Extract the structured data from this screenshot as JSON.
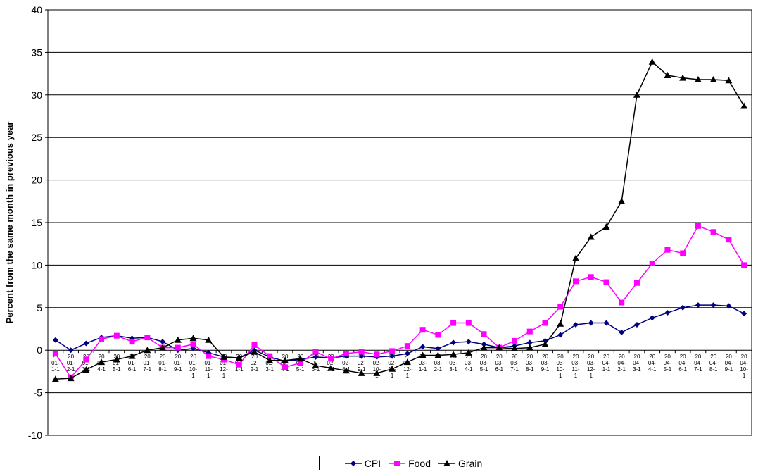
{
  "chart_data": {
    "type": "line",
    "title": "",
    "xlabel": "",
    "ylabel": "Percent from the same month in previous year",
    "ylim": [
      -10,
      40
    ],
    "yticks": [
      -10,
      -5,
      0,
      5,
      10,
      15,
      20,
      25,
      30,
      35,
      40
    ],
    "grid": "horizontal",
    "legend": "bottom-center",
    "categories": [
      "2001-1-1",
      "2001-2-1",
      "2001-3-1",
      "2001-4-1",
      "2001-5-1",
      "2001-6-1",
      "2001-7-1",
      "2001-8-1",
      "2001-9-1",
      "2001-10-1",
      "2001-11-1",
      "2001-12-1",
      "2002-1-1",
      "2002-2-1",
      "2002-3-1",
      "2002-4-1",
      "2002-5-1",
      "2002-6-1",
      "2002-7-1",
      "2002-8-1",
      "2002-9-1",
      "2002-10-1",
      "2002-11-1",
      "2002-12-1",
      "2003-1-1",
      "2003-2-1",
      "2003-3-1",
      "2003-4-1",
      "2003-5-1",
      "2003-6-1",
      "2003-7-1",
      "2003-8-1",
      "2003-9-1",
      "2003-10-1",
      "2003-11-1",
      "2003-12-1",
      "2004-1-1",
      "2004-2-1",
      "2004-3-1",
      "2004-4-1",
      "2004-5-1",
      "2004-6-1",
      "2004-7-1",
      "2004-8-1",
      "2004-9-1",
      "2004-10-1"
    ],
    "category_labels": [
      [
        "20",
        "01-",
        "1-1"
      ],
      [
        "20",
        "01-",
        "2-1"
      ],
      [
        "20",
        "01-",
        "3-1"
      ],
      [
        "20",
        "01-",
        "4-1"
      ],
      [
        "20",
        "01-",
        "5-1"
      ],
      [
        "20",
        "01-",
        "6-1"
      ],
      [
        "20",
        "01-",
        "7-1"
      ],
      [
        "20",
        "01-",
        "8-1"
      ],
      [
        "20",
        "01-",
        "9-1"
      ],
      [
        "20",
        "01-",
        "10-",
        "1"
      ],
      [
        "20",
        "01-",
        "11-",
        "1"
      ],
      [
        "20",
        "01-",
        "12-",
        "1"
      ],
      [
        "20",
        "02-",
        "1-1"
      ],
      [
        "20",
        "02-",
        "2-1"
      ],
      [
        "20",
        "02-",
        "3-1"
      ],
      [
        "20",
        "02-",
        "4-1"
      ],
      [
        "20",
        "02-",
        "5-1"
      ],
      [
        "20",
        "02-",
        "6-1"
      ],
      [
        "20",
        "02-",
        "7-1"
      ],
      [
        "20",
        "02-",
        "8-1"
      ],
      [
        "20",
        "02-",
        "9-1"
      ],
      [
        "20",
        "02-",
        "10-",
        "1"
      ],
      [
        "20",
        "02-",
        "11-",
        "1"
      ],
      [
        "20",
        "02-",
        "12-",
        "1"
      ],
      [
        "20",
        "03-",
        "1-1"
      ],
      [
        "20",
        "03-",
        "2-1"
      ],
      [
        "20",
        "03-",
        "3-1"
      ],
      [
        "20",
        "03-",
        "4-1"
      ],
      [
        "20",
        "03-",
        "5-1"
      ],
      [
        "20",
        "03-",
        "6-1"
      ],
      [
        "20",
        "03-",
        "7-1"
      ],
      [
        "20",
        "03-",
        "8-1"
      ],
      [
        "20",
        "03-",
        "9-1"
      ],
      [
        "20",
        "03-",
        "10-",
        "1"
      ],
      [
        "20",
        "03-",
        "11-",
        "1"
      ],
      [
        "20",
        "03-",
        "12-",
        "1"
      ],
      [
        "20",
        "04-",
        "1-1"
      ],
      [
        "20",
        "04-",
        "2-1"
      ],
      [
        "20",
        "04-",
        "3-1"
      ],
      [
        "20",
        "04-",
        "4-1"
      ],
      [
        "20",
        "04-",
        "5-1"
      ],
      [
        "20",
        "04-",
        "6-1"
      ],
      [
        "20",
        "04-",
        "7-1"
      ],
      [
        "20",
        "04-",
        "8-1"
      ],
      [
        "20",
        "04-",
        "9-1"
      ],
      [
        "20",
        "04-",
        "10-",
        "1"
      ]
    ],
    "series": [
      {
        "name": "CPI",
        "color": "#000080",
        "marker": "diamond",
        "values": [
          1.2,
          0.0,
          0.8,
          1.5,
          1.7,
          1.4,
          1.5,
          1.0,
          0.0,
          0.2,
          -0.3,
          -0.8,
          -0.9,
          0.0,
          -0.8,
          -1.3,
          -1.1,
          -0.8,
          -0.9,
          -0.7,
          -0.7,
          -0.8,
          -0.7,
          -0.4,
          0.4,
          0.2,
          0.9,
          1.0,
          0.7,
          0.3,
          0.5,
          0.9,
          1.1,
          1.8,
          3.0,
          3.2,
          3.2,
          2.1,
          3.0,
          3.8,
          4.4,
          5.0,
          5.3,
          5.3,
          5.2,
          4.3
        ]
      },
      {
        "name": "Food",
        "color": "#FF00FF",
        "marker": "square",
        "values": [
          -0.4,
          -3.2,
          -1.1,
          1.3,
          1.7,
          1.0,
          1.5,
          0.3,
          0.3,
          0.7,
          -0.7,
          -1.1,
          -1.7,
          0.6,
          -0.7,
          -2.0,
          -1.5,
          -0.2,
          -1.0,
          -0.4,
          -0.2,
          -0.5,
          -0.1,
          0.5,
          2.4,
          1.8,
          3.2,
          3.2,
          1.9,
          0.3,
          1.1,
          2.2,
          3.2,
          5.1,
          8.1,
          8.6,
          8.0,
          5.6,
          7.9,
          10.2,
          11.8,
          11.4,
          14.6,
          13.9,
          13.0,
          10.0
        ]
      },
      {
        "name": "Grain",
        "color": "#000000",
        "marker": "triangle",
        "values": [
          -3.4,
          -3.3,
          -2.3,
          -1.4,
          -1.1,
          -0.7,
          0.0,
          0.3,
          1.2,
          1.4,
          1.2,
          -0.8,
          -0.9,
          -0.2,
          -1.2,
          -1.2,
          -1.0,
          -1.8,
          -2.1,
          -2.4,
          -2.7,
          -2.7,
          -2.2,
          -1.4,
          -0.6,
          -0.6,
          -0.5,
          -0.3,
          0.3,
          0.3,
          0.2,
          0.3,
          0.7,
          3.1,
          10.8,
          13.3,
          14.5,
          17.5,
          30.0,
          33.9,
          32.3,
          32.0,
          31.8,
          31.8,
          31.7,
          28.7
        ]
      }
    ]
  }
}
